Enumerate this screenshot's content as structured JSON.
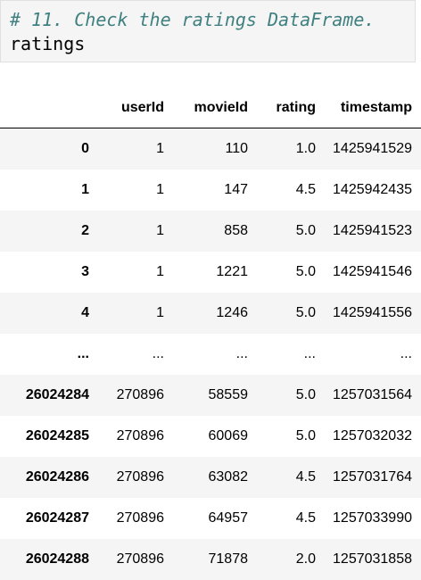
{
  "code_cell": {
    "comment": "# 11. Check the ratings DataFrame.",
    "code": "ratings"
  },
  "dataframe": {
    "columns": [
      "",
      "userId",
      "movieId",
      "rating",
      "timestamp"
    ],
    "rows": [
      [
        "0",
        "1",
        "110",
        "1.0",
        "1425941529"
      ],
      [
        "1",
        "1",
        "147",
        "4.5",
        "1425942435"
      ],
      [
        "2",
        "1",
        "858",
        "5.0",
        "1425941523"
      ],
      [
        "3",
        "1",
        "1221",
        "5.0",
        "1425941546"
      ],
      [
        "4",
        "1",
        "1246",
        "5.0",
        "1425941556"
      ],
      [
        "...",
        "...",
        "...",
        "...",
        "..."
      ],
      [
        "26024284",
        "270896",
        "58559",
        "5.0",
        "1257031564"
      ],
      [
        "26024285",
        "270896",
        "60069",
        "5.0",
        "1257032032"
      ],
      [
        "26024286",
        "270896",
        "63082",
        "4.5",
        "1257031764"
      ],
      [
        "26024287",
        "270896",
        "64957",
        "4.5",
        "1257033990"
      ],
      [
        "26024288",
        "270896",
        "71878",
        "2.0",
        "1257031858"
      ]
    ]
  },
  "colors": {
    "comment": "#408080",
    "cell_background": "#f5f5f5",
    "row_stripe": "#f5f5f5"
  }
}
